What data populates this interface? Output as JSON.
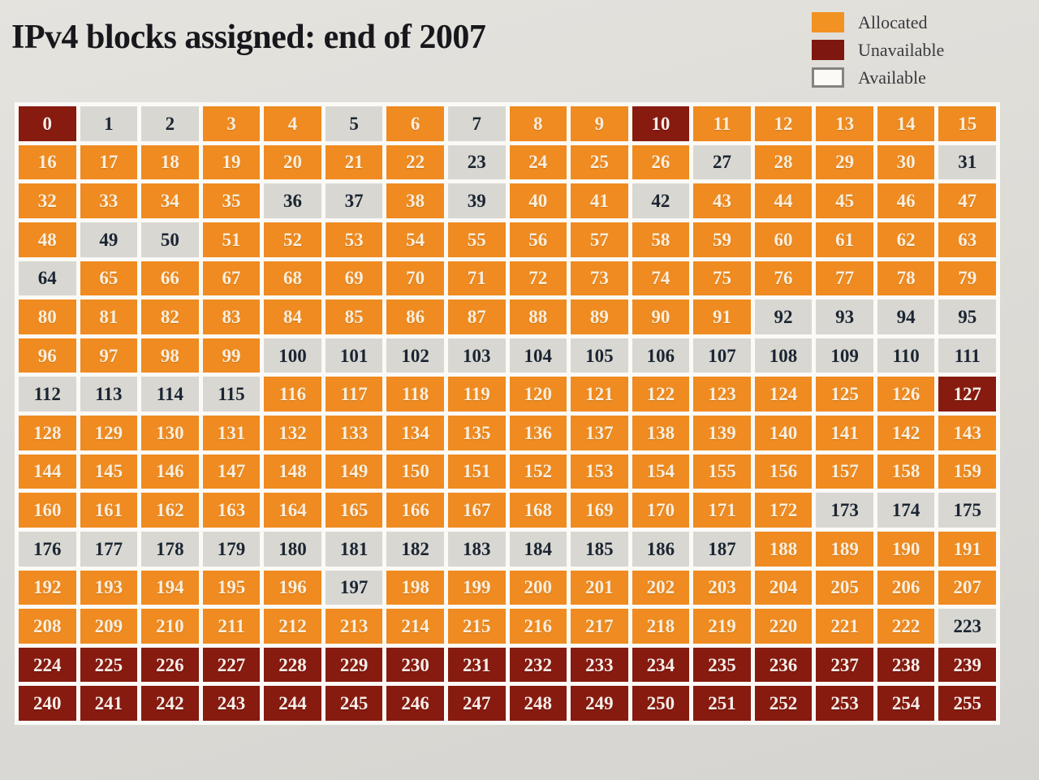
{
  "title": "IPv4 blocks assigned: end of 2007",
  "legend": {
    "items": [
      {
        "label": "Allocated",
        "key": "allocated"
      },
      {
        "label": "Unavailable",
        "key": "unavailable"
      },
      {
        "label": "Available",
        "key": "available"
      }
    ]
  },
  "colors": {
    "allocated": "#ef8b20",
    "unavailable": "#871b10",
    "available": "#d8d7d2",
    "grout": "#fbfaf7",
    "background": "#dedcd7",
    "text_on_dark": "#faeedd",
    "text_on_light": "#1b2532",
    "title_color": "#17171c"
  },
  "chart_data": {
    "type": "heatmap",
    "title": "IPv4 blocks assigned: end of 2007",
    "rows": 16,
    "cols": 16,
    "first_block": 0,
    "last_block": 255,
    "legend": [
      "Allocated",
      "Unavailable",
      "Available"
    ],
    "legend_position": "top-right",
    "default_status": "allocated",
    "unavailable_blocks": [
      0,
      10,
      127,
      224,
      225,
      226,
      227,
      228,
      229,
      230,
      231,
      232,
      233,
      234,
      235,
      236,
      237,
      238,
      239,
      240,
      241,
      242,
      243,
      244,
      245,
      246,
      247,
      248,
      249,
      250,
      251,
      252,
      253,
      254,
      255
    ],
    "available_blocks": [
      1,
      2,
      5,
      7,
      23,
      27,
      31,
      36,
      37,
      39,
      42,
      49,
      50,
      64,
      92,
      93,
      94,
      95,
      100,
      101,
      102,
      103,
      104,
      105,
      106,
      107,
      108,
      109,
      110,
      111,
      112,
      113,
      114,
      115,
      173,
      174,
      175,
      176,
      177,
      178,
      179,
      180,
      181,
      182,
      183,
      184,
      185,
      186,
      187,
      197,
      223
    ]
  }
}
